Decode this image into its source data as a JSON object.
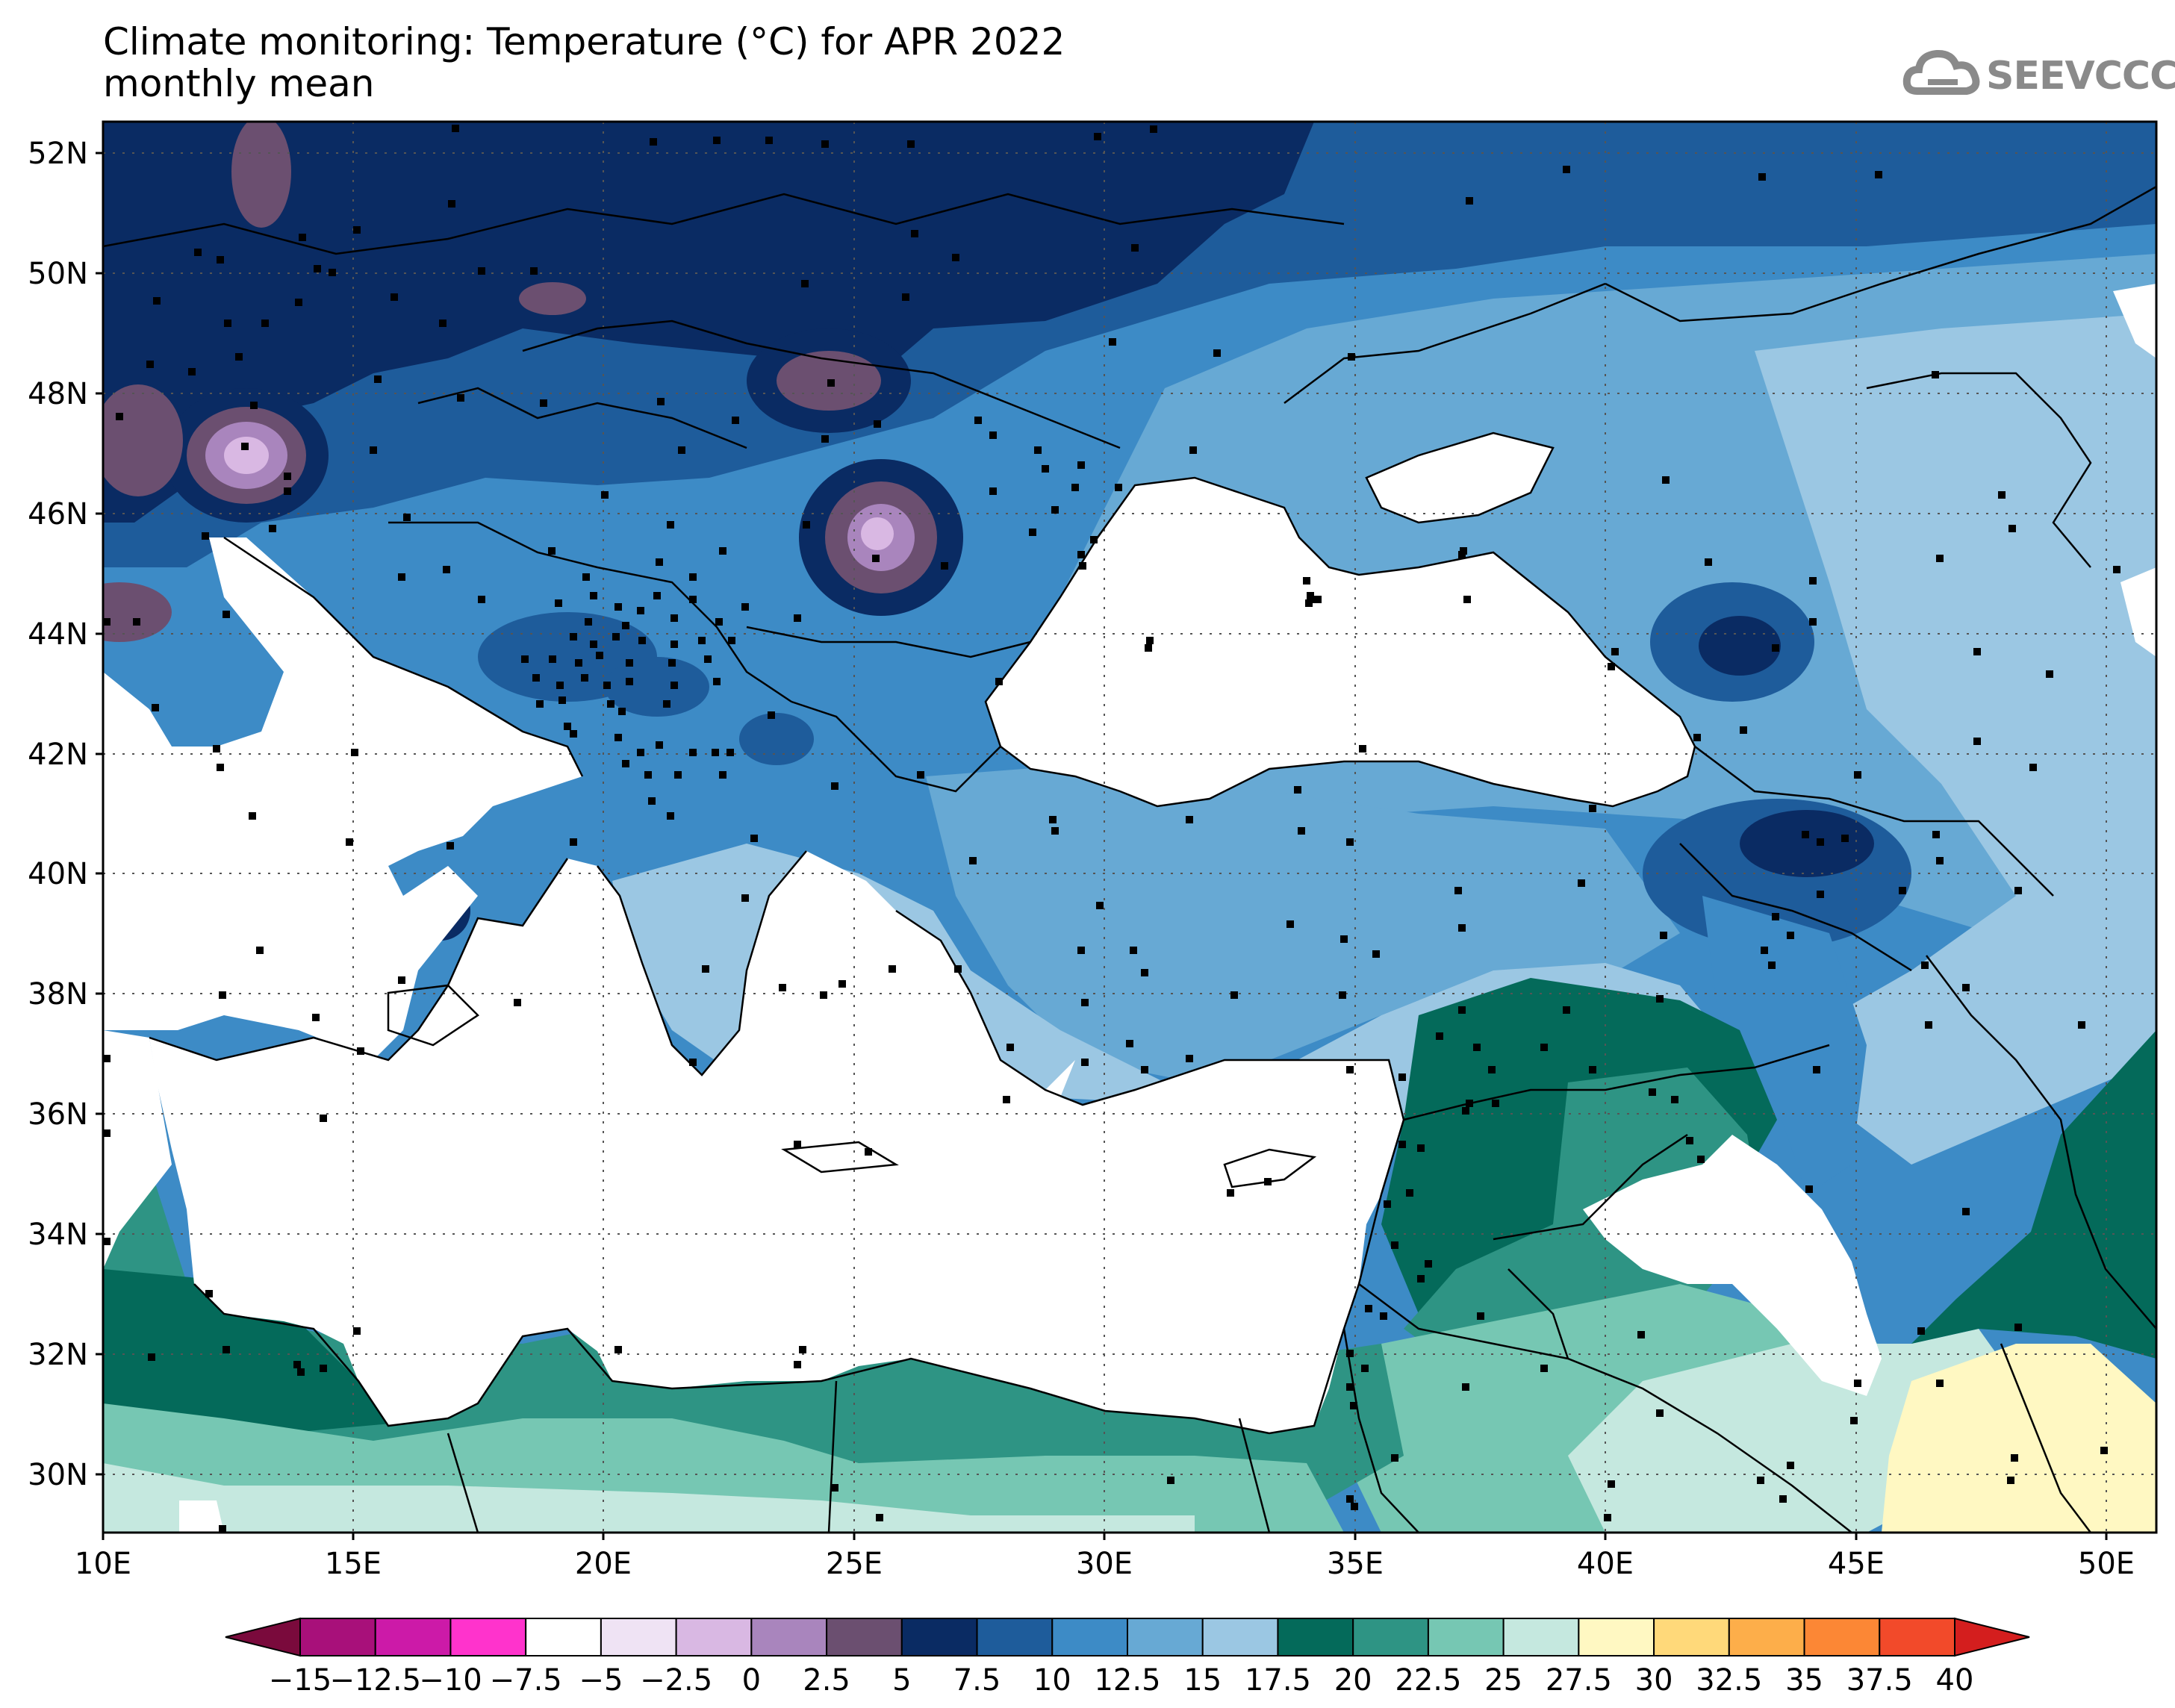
{
  "title": {
    "line1": "Climate monitoring: Temperature (°C) for APR 2022",
    "line2": "monthly mean"
  },
  "logo": {
    "text": "SEEVCCC",
    "icon": "cloud-icon"
  },
  "map": {
    "lon_range": [
      10,
      51
    ],
    "lat_range": [
      29,
      52.5
    ],
    "x_ticks": [
      "10E",
      "15E",
      "20E",
      "25E",
      "30E",
      "35E",
      "40E",
      "45E",
      "50E"
    ],
    "y_ticks": [
      "52N",
      "50N",
      "48N",
      "46N",
      "44N",
      "42N",
      "40N",
      "38N",
      "36N",
      "34N",
      "32N",
      "30N"
    ],
    "gridlines": "dotted",
    "masked_color": "#ffffff"
  },
  "colorbar": {
    "labels": [
      "-15",
      "-12.5",
      "-10",
      "-7.5",
      "-5",
      "-2.5",
      "0",
      "2.5",
      "5",
      "7.5",
      "10",
      "12.5",
      "15",
      "17.5",
      "20",
      "22.5",
      "25",
      "27.5",
      "30",
      "32.5",
      "35",
      "37.5",
      "40"
    ],
    "colors": [
      "#7a0a3c",
      "#a8107a",
      "#cc1aa8",
      "#ff33cc",
      "#ffffff",
      "#efe3f4",
      "#d9b8e3",
      "#a985bd",
      "#6b4f70",
      "#0a2b63",
      "#1e5c9b",
      "#3d8bc6",
      "#67a9d4",
      "#9bc7e3",
      "#046a5a",
      "#2e9484",
      "#76c7b3",
      "#c5e8df",
      "#fff8c2",
      "#ffd97a",
      "#fdae4a",
      "#fc8735",
      "#f24a2a",
      "#d41e1e"
    ]
  }
}
